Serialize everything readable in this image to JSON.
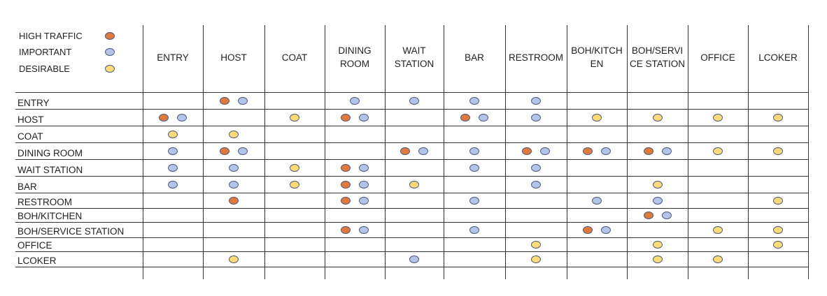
{
  "legend": [
    {
      "label": "HIGH TRAFFIC",
      "level": "high"
    },
    {
      "label": "IMPORTANT",
      "level": "imp"
    },
    {
      "label": "DESIRABLE",
      "level": "des"
    }
  ],
  "colors": {
    "high": "#e07a3c",
    "imp": "#b4c3e8",
    "des": "#fbdc78",
    "line": "#333333",
    "dot_border": "#4a5a7a"
  },
  "columns": [
    "ENTRY",
    "HOST",
    "COAT",
    "DINING\nROOM",
    "WAIT\nSTATION",
    "BAR",
    "RESTROOM",
    "BOH/KITCH\nEN",
    "BOH/SERVI\nCE STATION",
    "OFFICE",
    "LCOKER"
  ],
  "rows": [
    {
      "label": "ENTRY",
      "cells": [
        [],
        [
          "high",
          "imp"
        ],
        [],
        [
          "imp"
        ],
        [
          "imp"
        ],
        [
          "imp"
        ],
        [
          "imp"
        ],
        [],
        [],
        [],
        []
      ]
    },
    {
      "label": "HOST",
      "cells": [
        [
          "high",
          "imp"
        ],
        [],
        [
          "des"
        ],
        [
          "high",
          "imp"
        ],
        [],
        [
          "high",
          "imp"
        ],
        [
          "imp"
        ],
        [
          "des"
        ],
        [
          "des"
        ],
        [
          "des"
        ],
        [
          "des"
        ]
      ]
    },
    {
      "label": "COAT",
      "cells": [
        [
          "des"
        ],
        [
          "des"
        ],
        [],
        [],
        [],
        [],
        [],
        [],
        [],
        [],
        []
      ]
    },
    {
      "label": "DINING ROOM",
      "cells": [
        [
          "imp"
        ],
        [
          "high",
          "imp"
        ],
        [],
        [],
        [
          "high",
          "imp"
        ],
        [
          "imp"
        ],
        [
          "high",
          "imp"
        ],
        [
          "high",
          "imp"
        ],
        [
          "high",
          "imp"
        ],
        [
          "des"
        ],
        [
          "des"
        ]
      ]
    },
    {
      "label": "WAIT STATION",
      "cells": [
        [
          "imp"
        ],
        [
          "imp"
        ],
        [
          "des"
        ],
        [
          "high",
          "imp"
        ],
        [],
        [
          "imp"
        ],
        [
          "imp"
        ],
        [],
        [],
        [],
        []
      ]
    },
    {
      "label": "BAR",
      "cells": [
        [
          "imp"
        ],
        [
          "imp"
        ],
        [
          "des"
        ],
        [
          "high",
          "imp"
        ],
        [
          "des"
        ],
        [],
        [
          "imp"
        ],
        [],
        [
          "des"
        ],
        [],
        []
      ]
    },
    {
      "label": "RESTROOM",
      "cells": [
        [],
        [
          "high"
        ],
        [],
        [
          "high",
          "imp"
        ],
        [],
        [
          "imp"
        ],
        [],
        [
          "imp"
        ],
        [
          "imp"
        ],
        [],
        [
          "des"
        ]
      ]
    },
    {
      "label": "BOH/KITCHEN",
      "cells": [
        [],
        [],
        [],
        [],
        [],
        [],
        [],
        [],
        [
          "high",
          "imp"
        ],
        [],
        []
      ]
    },
    {
      "label": "BOH/SERVICE STATION",
      "cells": [
        [],
        [],
        [],
        [
          "high",
          "imp"
        ],
        [],
        [
          "imp"
        ],
        [],
        [
          "high",
          "imp"
        ],
        [],
        [
          "des"
        ],
        [
          "des"
        ]
      ]
    },
    {
      "label": "OFFICE",
      "cells": [
        [],
        [],
        [],
        [],
        [],
        [],
        [
          "des"
        ],
        [],
        [
          "des"
        ],
        [],
        [
          "des"
        ]
      ]
    },
    {
      "label": "LCOKER",
      "cells": [
        [],
        [
          "des"
        ],
        [],
        [],
        [
          "imp"
        ],
        [],
        [
          "des"
        ],
        [],
        [
          "des"
        ],
        [
          "des"
        ],
        []
      ]
    }
  ]
}
